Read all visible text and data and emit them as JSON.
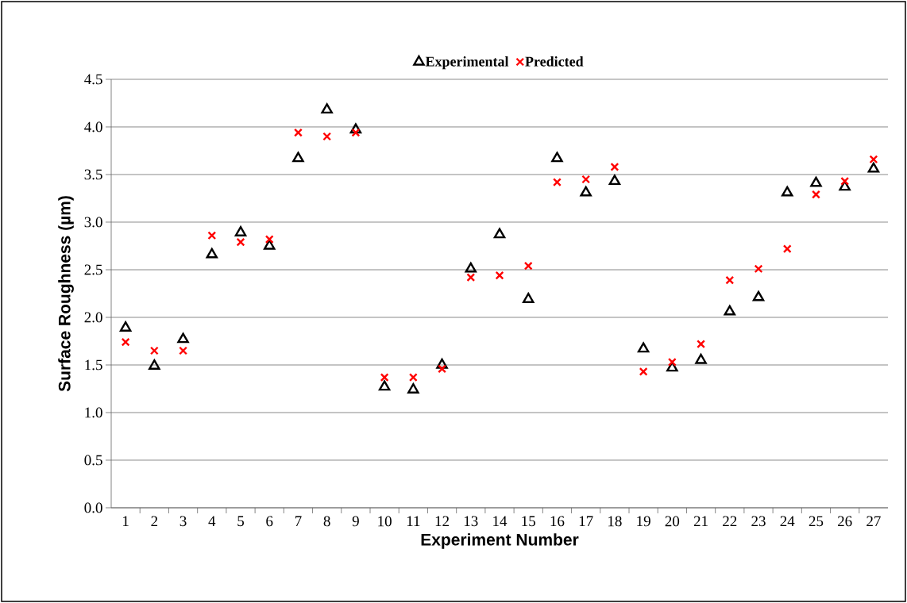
{
  "chart_data": {
    "type": "scatter",
    "xlabel": "Experiment Number",
    "ylabel": "Surface Roughness  (µm)",
    "categories": [
      "1",
      "2",
      "3",
      "4",
      "5",
      "6",
      "7",
      "8",
      "9",
      "10",
      "11",
      "12",
      "13",
      "14",
      "15",
      "16",
      "17",
      "18",
      "19",
      "20",
      "21",
      "22",
      "23",
      "24",
      "25",
      "26",
      "27"
    ],
    "series": [
      {
        "name": "Experimental",
        "color": "#000000",
        "marker": "triangle",
        "values": [
          1.89,
          1.49,
          1.77,
          2.66,
          2.89,
          2.75,
          3.67,
          4.18,
          3.97,
          1.27,
          1.24,
          1.5,
          2.51,
          2.87,
          2.19,
          3.67,
          3.31,
          3.43,
          1.67,
          1.47,
          1.55,
          2.06,
          2.21,
          3.31,
          3.41,
          3.37,
          3.56
        ]
      },
      {
        "name": "Predicted",
        "color": "#ff0000",
        "marker": "cross",
        "values": [
          1.74,
          1.65,
          1.65,
          2.86,
          2.79,
          2.82,
          3.94,
          3.9,
          3.94,
          1.37,
          1.37,
          1.46,
          2.42,
          2.44,
          2.54,
          3.42,
          3.45,
          3.58,
          1.43,
          1.53,
          1.72,
          2.39,
          2.51,
          2.72,
          3.29,
          3.43,
          3.66
        ]
      }
    ],
    "ylim": [
      0,
      4.5
    ],
    "yticks": [
      {
        "value": 0,
        "label": "0.0"
      },
      {
        "value": 0.5,
        "label": "0.5"
      },
      {
        "value": 1,
        "label": "1.0"
      },
      {
        "value": 1.5,
        "label": "1.5"
      },
      {
        "value": 2,
        "label": "2.0"
      },
      {
        "value": 2.5,
        "label": "2.5"
      },
      {
        "value": 3,
        "label": "3.0"
      },
      {
        "value": 3.5,
        "label": "3.5"
      },
      {
        "value": 4,
        "label": "4.0"
      },
      {
        "value": 4.5,
        "label": "4.5"
      }
    ],
    "grid": "y",
    "legend": "top"
  }
}
